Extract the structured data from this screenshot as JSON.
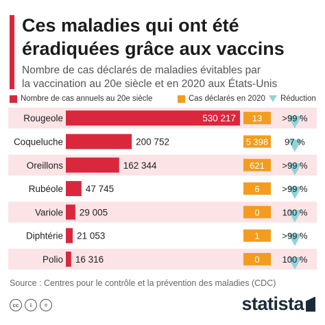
{
  "header": {
    "title_line1": "Ces maladies qui ont été",
    "title_line2": "éradiquées grâce aux vaccins",
    "subtitle_line1": "Nombre de cas déclarés de maladies évitables par",
    "subtitle_line2": "la vaccination au 20e siècle et en 2020 aux États-Unis"
  },
  "legend": {
    "annual": "Nombre de cas annuels au 20e siècle",
    "reported": "Cas déclarés en 2020",
    "reduction": "Réduction"
  },
  "colors": {
    "accent": "#d9283e",
    "orange": "#f39c1f",
    "teal": "#8fd3d8",
    "row_band": "#fbe3e6"
  },
  "chart_data": {
    "type": "bar",
    "categories": [
      "Rougeole",
      "Coqueluche",
      "Oreillons",
      "Rubéole",
      "Variole",
      "Diphtérie",
      "Polio"
    ],
    "series": [
      {
        "name": "Nombre de cas annuels au 20e siècle",
        "values": [
          530217,
          200752,
          162344,
          47745,
          29005,
          21053,
          16316
        ],
        "labels": [
          "530 217",
          "200 752",
          "162 344",
          "47 745",
          "29 005",
          "21 053",
          "16 316"
        ]
      },
      {
        "name": "Cas déclarés en 2020",
        "values": [
          13,
          5398,
          621,
          6,
          0,
          1,
          0
        ],
        "labels": [
          "13",
          "5 398",
          "621",
          "6",
          "0",
          "1",
          "0"
        ]
      },
      {
        "name": "Réduction",
        "labels": [
          ">99 %",
          "97 %",
          ">99 %",
          ">99 %",
          "100 %",
          ">99 %",
          "100 %"
        ]
      }
    ]
  },
  "footer": {
    "source": "Source : Centres pour le contrôle et la prévention des maladies (CDC)",
    "cc_icons": [
      "cc",
      "i",
      "="
    ],
    "brand": "statista"
  }
}
